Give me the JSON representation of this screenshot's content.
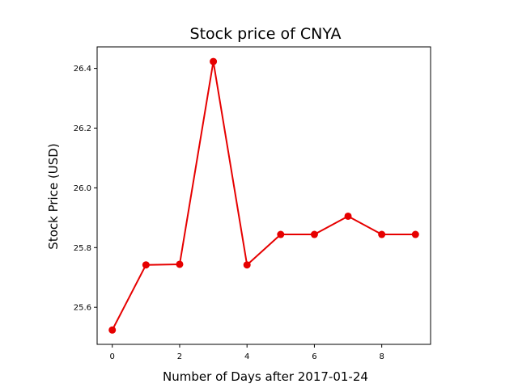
{
  "chart_data": {
    "type": "line",
    "title": "Stock price of CNYA",
    "xlabel": "Number of Days after 2017-01-24",
    "ylabel": "Stock Price (USD)",
    "x": [
      0,
      1,
      2,
      3,
      4,
      5,
      6,
      7,
      8,
      9
    ],
    "series": [
      {
        "values": [
          25.524,
          25.742,
          25.744,
          26.423,
          25.742,
          25.844,
          25.844,
          25.905,
          25.844,
          25.844
        ],
        "color": "#e60000"
      }
    ],
    "xlim": [
      -0.45,
      9.45
    ],
    "ylim": [
      25.476,
      26.472
    ],
    "xticks": [
      0,
      2,
      4,
      6,
      8
    ],
    "xtick_labels": [
      "0",
      "2",
      "4",
      "6",
      "8"
    ],
    "yticks": [
      25.6,
      25.8,
      26.0,
      26.2,
      26.4
    ],
    "ytick_labels": [
      "25.6",
      "25.8",
      "26.0",
      "26.2",
      "26.4"
    ],
    "grid": false,
    "legend": "none"
  }
}
